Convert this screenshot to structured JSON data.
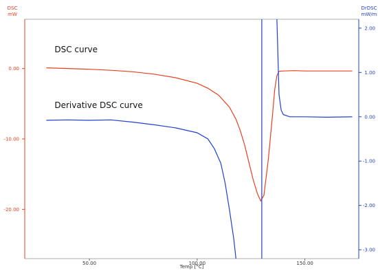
{
  "chart_data": {
    "type": "line",
    "xlabel": "Temp [°C]",
    "y_left_label": "DSC",
    "y_left_unit": "mW",
    "y_right_label": "DrDSC",
    "y_right_unit": "mW/m",
    "xlim": [
      20,
      175
    ],
    "ylim_left": [
      -27,
      7
    ],
    "ylim_right": [
      -3.2,
      2.2
    ],
    "x_ticks": [
      "50.00",
      "100.00",
      "150.00"
    ],
    "x_tick_values": [
      50,
      100,
      150
    ],
    "y_left_ticks": [
      "0.00",
      "-10.00",
      "-20.00"
    ],
    "y_left_tick_values": [
      0,
      -10,
      -20
    ],
    "y_right_ticks": [
      "2.00",
      "1.00",
      "0.00",
      "-1.00",
      "-2.00",
      "-3.00"
    ],
    "y_right_tick_values": [
      2,
      1,
      0,
      -1,
      -2,
      -3
    ],
    "colors": {
      "dsc": "#e8401e",
      "derivative": "#1f3fd1"
    },
    "annotations": [
      {
        "text": "DSC curve",
        "x": 30,
        "y": 2.3,
        "axis": "left"
      },
      {
        "text": "Derivative DSC curve",
        "x": 30,
        "y": -5.6,
        "axis": "left"
      }
    ],
    "series": [
      {
        "id": "dsc",
        "axis": "left",
        "points": [
          [
            30,
            0.1
          ],
          [
            40,
            0.0
          ],
          [
            50,
            -0.1
          ],
          [
            60,
            -0.25
          ],
          [
            70,
            -0.45
          ],
          [
            80,
            -0.8
          ],
          [
            90,
            -1.3
          ],
          [
            100,
            -2.1
          ],
          [
            105,
            -2.8
          ],
          [
            110,
            -3.8
          ],
          [
            115,
            -5.5
          ],
          [
            118,
            -7.2
          ],
          [
            120,
            -8.8
          ],
          [
            122,
            -10.8
          ],
          [
            124,
            -13.3
          ],
          [
            126,
            -15.8
          ],
          [
            128,
            -17.8
          ],
          [
            129.5,
            -18.8
          ],
          [
            131,
            -18.0
          ],
          [
            133,
            -13.0
          ],
          [
            135,
            -6.5
          ],
          [
            136,
            -3.0
          ],
          [
            137,
            -1.0
          ],
          [
            138,
            -0.4
          ],
          [
            140,
            -0.35
          ],
          [
            145,
            -0.3
          ],
          [
            150,
            -0.35
          ],
          [
            160,
            -0.35
          ],
          [
            172,
            -0.35
          ]
        ]
      },
      {
        "id": "derivative",
        "axis": "right",
        "points": [
          [
            30,
            -0.08
          ],
          [
            40,
            -0.07
          ],
          [
            50,
            -0.08
          ],
          [
            60,
            -0.07
          ],
          [
            70,
            -0.12
          ],
          [
            80,
            -0.18
          ],
          [
            90,
            -0.25
          ],
          [
            100,
            -0.36
          ],
          [
            105,
            -0.5
          ],
          [
            108,
            -0.72
          ],
          [
            111,
            -1.05
          ],
          [
            113,
            -1.5
          ],
          [
            115,
            -2.1
          ],
          [
            117,
            -2.75
          ],
          [
            118,
            -3.2
          ],
          [
            null,
            null
          ],
          [
            130,
            -3.2
          ],
          [
            130,
            2.2
          ],
          [
            null,
            null
          ],
          [
            137,
            2.2
          ],
          [
            138,
            0.5
          ],
          [
            139,
            0.15
          ],
          [
            140,
            0.05
          ],
          [
            143,
            0.0
          ],
          [
            150,
            0.0
          ],
          [
            160,
            -0.01
          ],
          [
            172,
            0.0
          ]
        ]
      }
    ]
  }
}
